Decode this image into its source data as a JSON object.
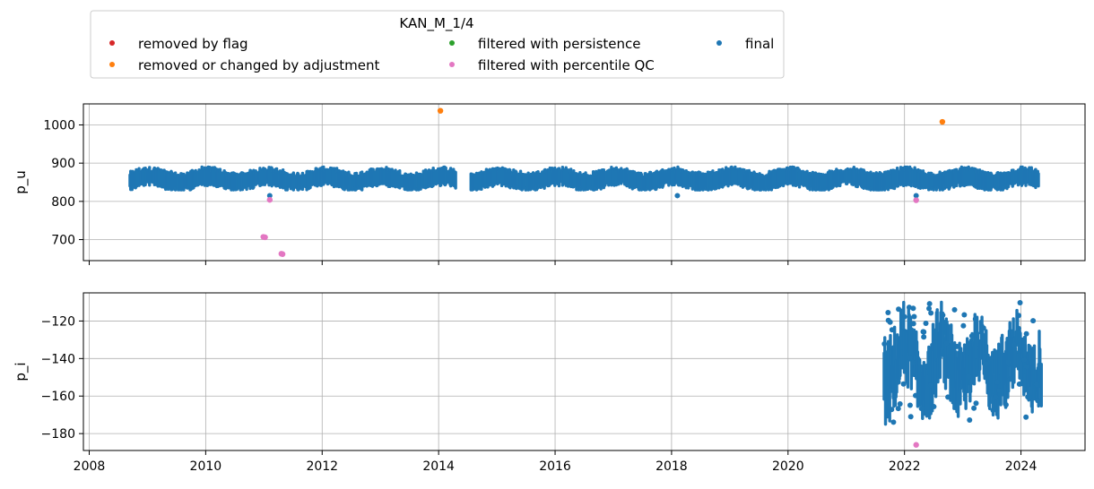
{
  "chart_data": {
    "type": "scatter",
    "legend": {
      "title": "KAN_M_1/4",
      "placement": "top-left",
      "entries": [
        {
          "label": "removed by flag",
          "color": "#d62728"
        },
        {
          "label": "removed or changed by adjustment",
          "color": "#ff7f0e"
        },
        {
          "label": "filtered with persistence",
          "color": "#2ca02c"
        },
        {
          "label": "filtered with percentile QC",
          "color": "#e377c2"
        },
        {
          "label": "final",
          "color": "#1f77b4"
        }
      ]
    },
    "x_axis": {
      "range": [
        2007.9,
        2025.1
      ],
      "ticks": [
        2008,
        2010,
        2012,
        2014,
        2016,
        2018,
        2020,
        2022,
        2024
      ],
      "tick_labels": [
        "2008",
        "2010",
        "2012",
        "2014",
        "2016",
        "2018",
        "2020",
        "2022",
        "2024"
      ],
      "grid": true
    },
    "panels": [
      {
        "ylabel": "p_u",
        "ylim": [
          645,
          1055
        ],
        "yticks": [
          700,
          800,
          900,
          1000
        ],
        "ytick_labels": [
          "700",
          "800",
          "900",
          "1000"
        ],
        "grid": true,
        "final_extent": {
          "x": [
            2008.7,
            2024.3
          ],
          "y_center": 858,
          "y_spread": [
            830,
            890
          ]
        },
        "gaps": [
          [
            2014.3,
            2014.55
          ]
        ],
        "final_outliers": [
          {
            "x": 2011.1,
            "y": 815
          },
          {
            "x": 2018.1,
            "y": 815
          },
          {
            "x": 2022.2,
            "y": 815
          }
        ],
        "percentile_qc_points": [
          {
            "x": 2010.99,
            "y": 707
          },
          {
            "x": 2011.02,
            "y": 706
          },
          {
            "x": 2011.3,
            "y": 663
          },
          {
            "x": 2011.32,
            "y": 662
          },
          {
            "x": 2011.1,
            "y": 804
          },
          {
            "x": 2022.2,
            "y": 803
          }
        ],
        "adjustment_points": [
          {
            "x": 2014.03,
            "y": 1037
          },
          {
            "x": 2022.65,
            "y": 1008
          }
        ]
      },
      {
        "ylabel": "p_i",
        "ylim": [
          -189,
          -105
        ],
        "yticks": [
          -180,
          -160,
          -140,
          -120
        ],
        "ytick_labels": [
          "−180",
          "−160",
          "−140",
          "−120"
        ],
        "grid": true,
        "final_extent": {
          "x": [
            2021.65,
            2024.35
          ],
          "y_center": -143,
          "y_spread": [
            -175,
            -110
          ]
        },
        "percentile_qc_points": [
          {
            "x": 2022.2,
            "y": -186
          }
        ]
      }
    ]
  }
}
